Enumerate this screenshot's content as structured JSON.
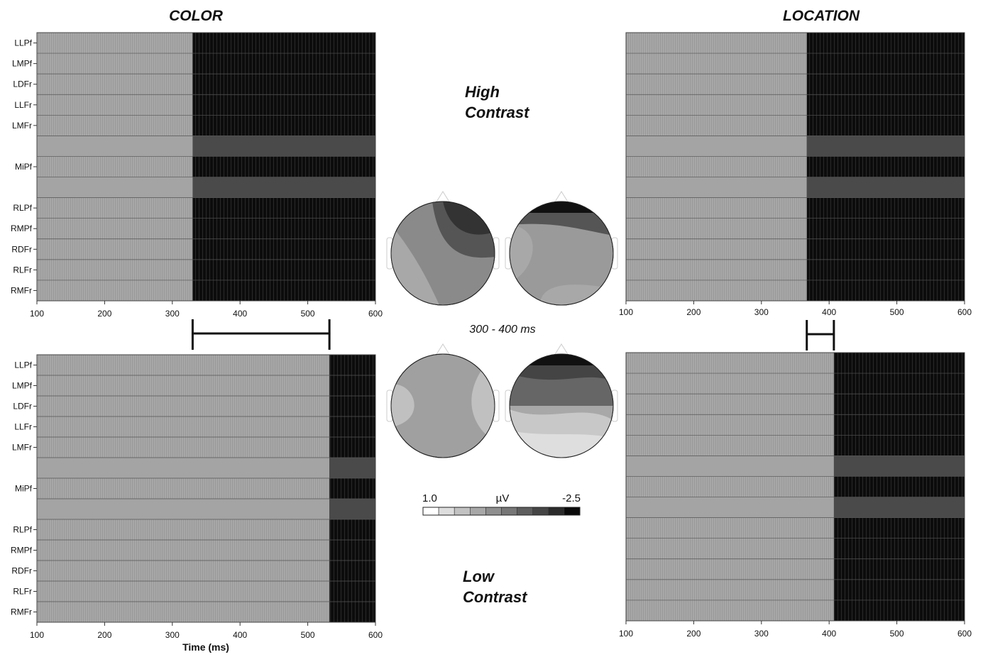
{
  "headings": {
    "left": "COLOR",
    "right": "LOCATION",
    "high_line1": "High",
    "high_line2": "Contrast",
    "low_line1": "Low",
    "low_line2": "Contrast",
    "window": "300 - 400 ms"
  },
  "colorbar": {
    "min_label": "1.0",
    "unit": "µV",
    "max_label": "-2.5",
    "colors": [
      "#ffffff",
      "#dddddd",
      "#c2c2c2",
      "#a8a8a8",
      "#8f8f8f",
      "#777777",
      "#5e5e5e",
      "#454545",
      "#2b2b2b",
      "#0a0a0a"
    ]
  },
  "chart_data": [
    {
      "type": "heatmap",
      "panel": "COLOR – High Contrast",
      "channels": [
        "LLPf",
        "LMPf",
        "LDFr",
        "LLFr",
        "LMFr",
        "",
        "MiPf",
        "",
        "RLPf",
        "RMPf",
        "RDFr",
        "RLFr",
        "RMFr"
      ],
      "xlim": [
        100,
        600
      ],
      "xticks": [
        100,
        200,
        300,
        400,
        500,
        600
      ],
      "xlabel": "",
      "significance_onset_ms": 330
    },
    {
      "type": "heatmap",
      "panel": "LOCATION – High Contrast",
      "channels": [
        "",
        "",
        "",
        "",
        "",
        "",
        "",
        "",
        "",
        "",
        "",
        "",
        ""
      ],
      "xlim": [
        100,
        600
      ],
      "xticks": [
        100,
        200,
        300,
        400,
        500,
        600
      ],
      "xlabel": "",
      "significance_onset_ms": 367
    },
    {
      "type": "heatmap",
      "panel": "COLOR – Low Contrast",
      "channels": [
        "LLPf",
        "LMPf",
        "LDFr",
        "LLFr",
        "LMFr",
        "",
        "MiPf",
        "",
        "RLPf",
        "RMPf",
        "RDFr",
        "RLFr",
        "RMFr"
      ],
      "xlim": [
        100,
        600
      ],
      "xticks": [
        100,
        200,
        300,
        400,
        500,
        600
      ],
      "xlabel": "Time (ms)",
      "significance_onset_ms": 532
    },
    {
      "type": "heatmap",
      "panel": "LOCATION – Low Contrast",
      "channels": [
        "",
        "",
        "",
        "",
        "",
        "",
        "",
        "",
        "",
        "",
        "",
        "",
        ""
      ],
      "xlim": [
        100,
        600
      ],
      "xticks": [
        100,
        200,
        300,
        400,
        500,
        600
      ],
      "xlabel": "",
      "significance_onset_ms": 407
    }
  ],
  "latency_bars": [
    {
      "panel": "COLOR",
      "from_ms": 330,
      "to_ms": 532
    },
    {
      "panel": "LOCATION",
      "from_ms": 367,
      "to_ms": 407
    }
  ],
  "topomaps": [
    {
      "name": "color-high",
      "shade": "#8a8a8a"
    },
    {
      "name": "location-high",
      "shade": "#9a9a9a"
    },
    {
      "name": "color-low",
      "shade": "#a0a0a0"
    },
    {
      "name": "location-low",
      "shade": "#a8a8a8"
    }
  ]
}
